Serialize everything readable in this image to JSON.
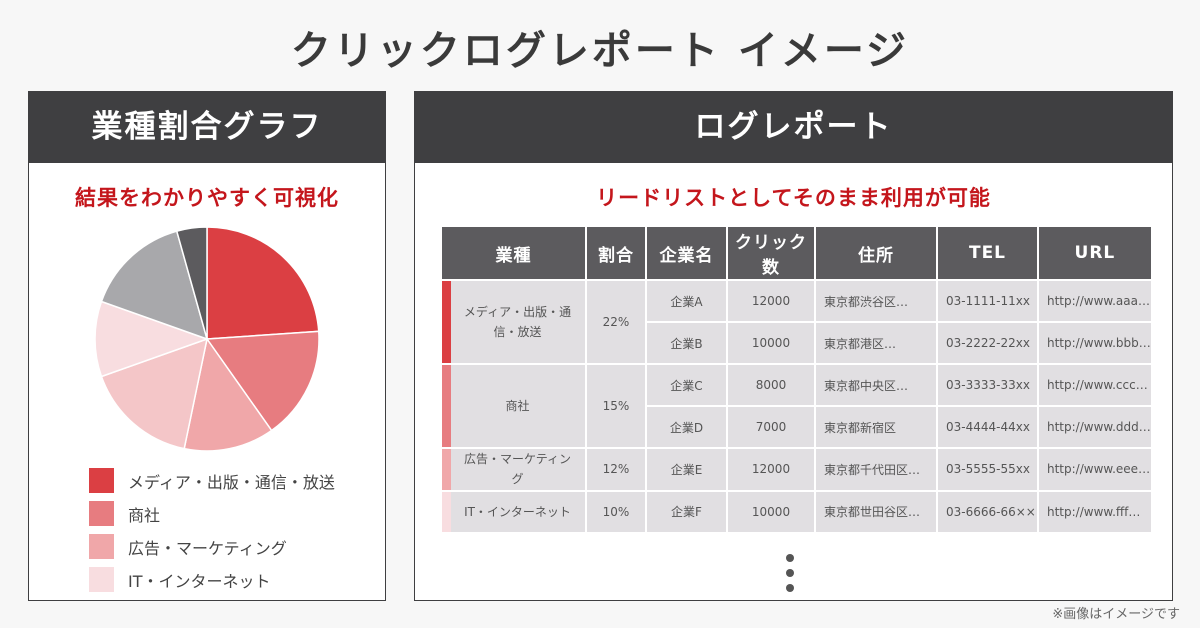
{
  "page": {
    "title": "クリックログレポート イメージ",
    "footnote": "※画像はイメージです"
  },
  "left_panel": {
    "title": "業種割合グラフ",
    "subtitle": "結果をわかりやすく可視化"
  },
  "right_panel": {
    "title": "ログレポート",
    "subtitle": "リードリストとしてそのまま利用が可能"
  },
  "colors": {
    "accent_red": "#c4161c",
    "header_dark": "#3f3f41",
    "table_header": "#5c5b5e"
  },
  "chart_data": {
    "type": "pie",
    "categories": [
      "メディア・出版・通信・放送",
      "商社",
      "広告・マーケティング",
      "IT・インターネット"
    ],
    "slices": [
      {
        "label": "メディア・出版・通信・放送",
        "value": 22,
        "color": "#db3f43"
      },
      {
        "label": "商社",
        "value": 15,
        "color": "#e77c80"
      },
      {
        "label": "広告・マーケティング",
        "value": 12,
        "color": "#f0a7a9"
      },
      {
        "label": "",
        "value": 15,
        "color": "#f4c6c8"
      },
      {
        "label": "IT・インターネット",
        "value": 10,
        "color": "#f8dde0"
      },
      {
        "label": "",
        "value": 14,
        "color": "#a8a8ab"
      },
      {
        "label": "",
        "value": 4,
        "color": "#5c5b5e"
      }
    ],
    "legend": [
      {
        "label": "メディア・出版・通信・放送",
        "color": "#db3f43"
      },
      {
        "label": "商社",
        "color": "#e77c80"
      },
      {
        "label": "広告・マーケティング",
        "color": "#f0a7a9"
      },
      {
        "label": "IT・インターネット",
        "color": "#f8dde0"
      }
    ],
    "legend_position": "bottom"
  },
  "table": {
    "headers": {
      "industry": "業種",
      "ratio": "割合",
      "company": "企業名",
      "clicks": "クリック数",
      "address": "住所",
      "tel": "TEL",
      "url": "URL"
    },
    "groups": [
      {
        "industry": "メディア・出版・通信・放送",
        "ratio": "22%",
        "color": "#db3f43",
        "rows": [
          {
            "company": "企業A",
            "clicks": "12000",
            "address": "東京都渋谷区…",
            "tel": "03-1111-11xx",
            "url": "http://www.aaa…"
          },
          {
            "company": "企業B",
            "clicks": "10000",
            "address": "東京都港区…",
            "tel": "03-2222-22xx",
            "url": "http://www.bbb…"
          }
        ]
      },
      {
        "industry": "商社",
        "ratio": "15%",
        "color": "#e77c80",
        "rows": [
          {
            "company": "企業C",
            "clicks": "8000",
            "address": "東京都中央区…",
            "tel": "03-3333-33xx",
            "url": "http://www.ccc…"
          },
          {
            "company": "企業D",
            "clicks": "7000",
            "address": "東京都新宿区",
            "tel": "03-4444-44xx",
            "url": "http://www.ddd…"
          }
        ]
      },
      {
        "industry": "広告・マーケティング",
        "ratio": "12%",
        "color": "#f0a7a9",
        "rows": [
          {
            "company": "企業E",
            "clicks": "12000",
            "address": "東京都千代田区…",
            "tel": "03-5555-55xx",
            "url": "http://www.eee…"
          }
        ]
      },
      {
        "industry": "IT・インターネット",
        "ratio": "10%",
        "color": "#f8dde0",
        "rows": [
          {
            "company": "企業F",
            "clicks": "10000",
            "address": "東京都世田谷区…",
            "tel": "03-6666-66××",
            "url": "http://www.fff…"
          }
        ]
      }
    ]
  }
}
